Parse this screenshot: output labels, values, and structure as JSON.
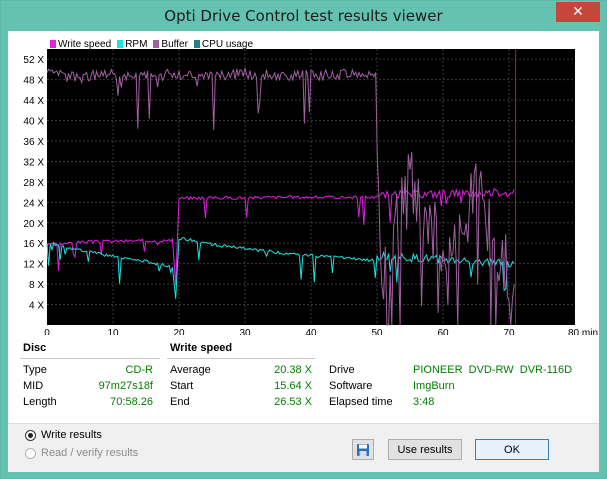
{
  "window": {
    "title": "Opti Drive Control test results viewer",
    "close_glyph": "✕"
  },
  "legend": [
    {
      "label": "Write speed",
      "color": "#e020e0"
    },
    {
      "label": "RPM",
      "color": "#20e0e0"
    },
    {
      "label": "Buffer",
      "color": "#a060a0"
    },
    {
      "label": "CPU usage",
      "color": "#208080"
    }
  ],
  "chart_data": {
    "type": "line",
    "title": "",
    "xlabel": "min",
    "ylabel": "",
    "x_ticks": [
      "0",
      "10",
      "20",
      "30",
      "40",
      "50",
      "60",
      "70",
      "80 min"
    ],
    "y_ticks": [
      "4 X",
      "8 X",
      "12 X",
      "16 X",
      "20 X",
      "24 X",
      "28 X",
      "32 X",
      "36 X",
      "40 X",
      "44 X",
      "48 X",
      "52 X"
    ],
    "xlim": [
      0,
      80
    ],
    "ylim": [
      0,
      54
    ],
    "grid": true,
    "legend_position": "top-left",
    "end_marker_x": 71,
    "series": [
      {
        "name": "Write speed",
        "color": "#e020e0",
        "x": [
          0,
          5,
          10,
          15,
          19,
          19.5,
          20,
          25,
          30,
          35,
          40,
          45,
          49.5,
          50,
          55,
          60,
          65,
          70,
          70.8
        ],
        "y": [
          15.64,
          16.2,
          16.4,
          16.5,
          16.5,
          8,
          24.8,
          24.9,
          24.9,
          25,
          25,
          25,
          25,
          25.4,
          25.6,
          25.7,
          25.8,
          26.1,
          26.53
        ]
      },
      {
        "name": "RPM",
        "color": "#20e0e0",
        "x": [
          0,
          5,
          10,
          15,
          19,
          19.5,
          20,
          25,
          30,
          35,
          40,
          45,
          49.5,
          50,
          55,
          60,
          65,
          70,
          70.8
        ],
        "y": [
          16.2,
          14.6,
          13.4,
          12.4,
          11.5,
          5,
          17,
          15.8,
          14.9,
          14.2,
          13.6,
          13.1,
          12.6,
          13.5,
          13.1,
          12.8,
          12.5,
          12.1,
          12
        ]
      },
      {
        "name": "Buffer",
        "color": "#a060a0",
        "x": [
          0,
          5,
          10,
          15,
          20,
          25,
          30,
          35,
          40,
          45,
          49.8,
          50.5,
          55,
          60,
          65,
          70,
          70.8
        ],
        "y": [
          49,
          48.5,
          49,
          48.8,
          49,
          48.9,
          49.2,
          49,
          48.8,
          49,
          49,
          8,
          30,
          14,
          26,
          10,
          8
        ]
      }
    ]
  },
  "disc": {
    "heading": "Disc",
    "rows": [
      {
        "label": "Type",
        "value": "CD-R"
      },
      {
        "label": "MID",
        "value": "97m27s18f"
      },
      {
        "label": "Length",
        "value": "70:58.26"
      }
    ]
  },
  "write_speed": {
    "heading": "Write speed",
    "rows": [
      {
        "label": "Average",
        "value": "20.38 X"
      },
      {
        "label": "Start",
        "value": "15.64 X"
      },
      {
        "label": "End",
        "value": "26.53 X"
      }
    ]
  },
  "info": {
    "rows": [
      {
        "label": "Drive",
        "value": "PIONEER  DVD-RW  DVR-116D"
      },
      {
        "label": "Software",
        "value": "ImgBurn"
      },
      {
        "label": "Elapsed time",
        "value": "3:48"
      }
    ]
  },
  "bottom": {
    "radio_write": "Write results",
    "radio_read": "Read / verify results",
    "use_results": "Use results",
    "ok": "OK"
  }
}
